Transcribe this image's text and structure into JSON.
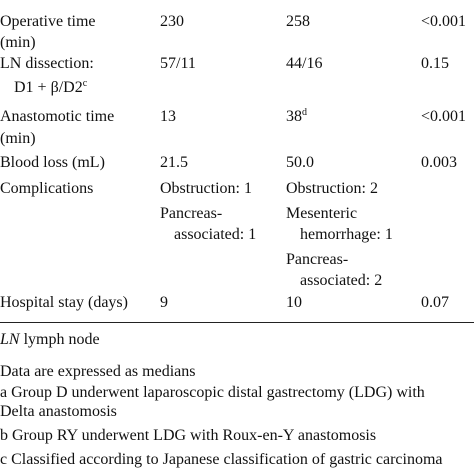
{
  "table": {
    "rows": [
      {
        "label": [
          "Operative time",
          "(min)"
        ],
        "group_d": [
          "230"
        ],
        "group_ry": [
          "258"
        ],
        "p": [
          "<0.001"
        ]
      },
      {
        "label": [
          "LN dissection:",
          "D1 + β/D2"
        ],
        "label_sup": "c",
        "group_d": [
          "57/11"
        ],
        "group_ry": [
          "44/16"
        ],
        "p": [
          "0.15"
        ]
      },
      {
        "label": [
          "Anastomotic time",
          "(min)"
        ],
        "group_d": [
          "13"
        ],
        "group_ry": [
          "38"
        ],
        "group_ry_sup": "d",
        "p": [
          "<0.001"
        ]
      },
      {
        "label": [
          "Blood loss (mL)"
        ],
        "group_d": [
          "21.5"
        ],
        "group_ry": [
          "50.0"
        ],
        "p": [
          "0.003"
        ]
      },
      {
        "label": [
          "Complications"
        ],
        "group_d": [
          "Obstruction: 1",
          "Pancreas-",
          "associated: 1"
        ],
        "group_ry": [
          "Obstruction: 2",
          "Mesenteric",
          "hemorrhage: 1",
          "Pancreas-",
          "associated: 2"
        ]
      },
      {
        "label": [
          "Hospital stay (days)"
        ],
        "group_d": [
          "9"
        ],
        "group_ry": [
          "10"
        ],
        "p": [
          "0.07"
        ]
      }
    ]
  },
  "footnotes": {
    "abbreviation": {
      "term": "LN",
      "text": "lymph node"
    },
    "note": "Data are expressed as medians",
    "items": [
      {
        "marker": "a",
        "lines": [
          "Group D underwent laparoscopic distal gastrectomy (LDG) with",
          "Delta anastomosis"
        ]
      },
      {
        "marker": "b",
        "lines": [
          "Group RY underwent LDG with Roux-en-Y anastomosis"
        ]
      },
      {
        "marker": "c",
        "lines": [
          "Classified according to Japanese classification of gastric carcinoma"
        ]
      }
    ]
  }
}
